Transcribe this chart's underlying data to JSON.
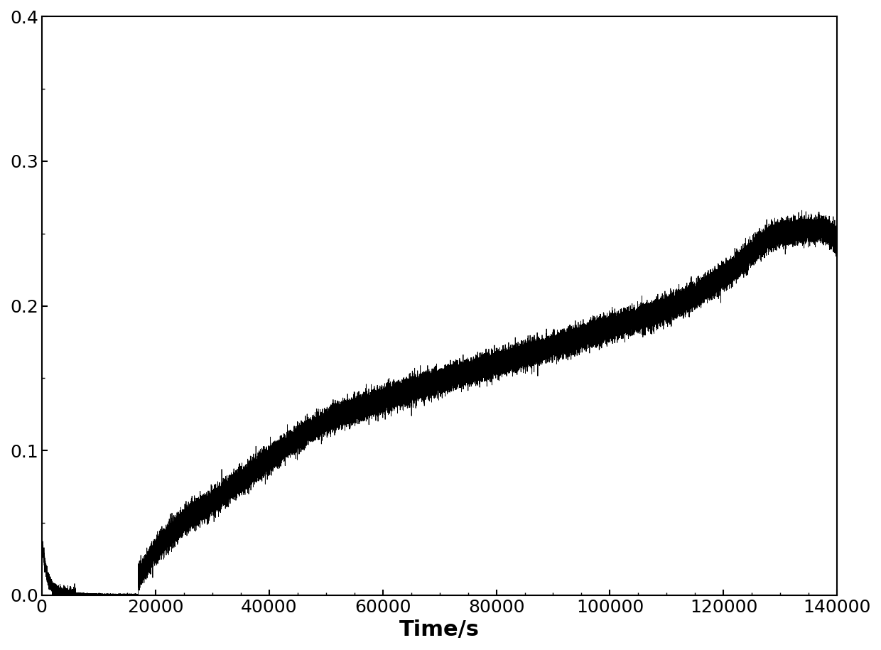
{
  "xlim": [
    0,
    140000
  ],
  "ylim": [
    0.0,
    0.4
  ],
  "xticks": [
    0,
    20000,
    40000,
    60000,
    80000,
    100000,
    120000,
    140000
  ],
  "yticks": [
    0.0,
    0.1,
    0.2,
    0.3,
    0.4
  ],
  "xlabel": "Time/s",
  "ylabel": "",
  "line_color": "#000000",
  "background_color": "#ffffff",
  "tick_label_fontsize": 18,
  "xlabel_fontsize": 22,
  "linewidth": 0.6,
  "figsize": [
    12.4,
    9.15
  ],
  "dpi": 100
}
